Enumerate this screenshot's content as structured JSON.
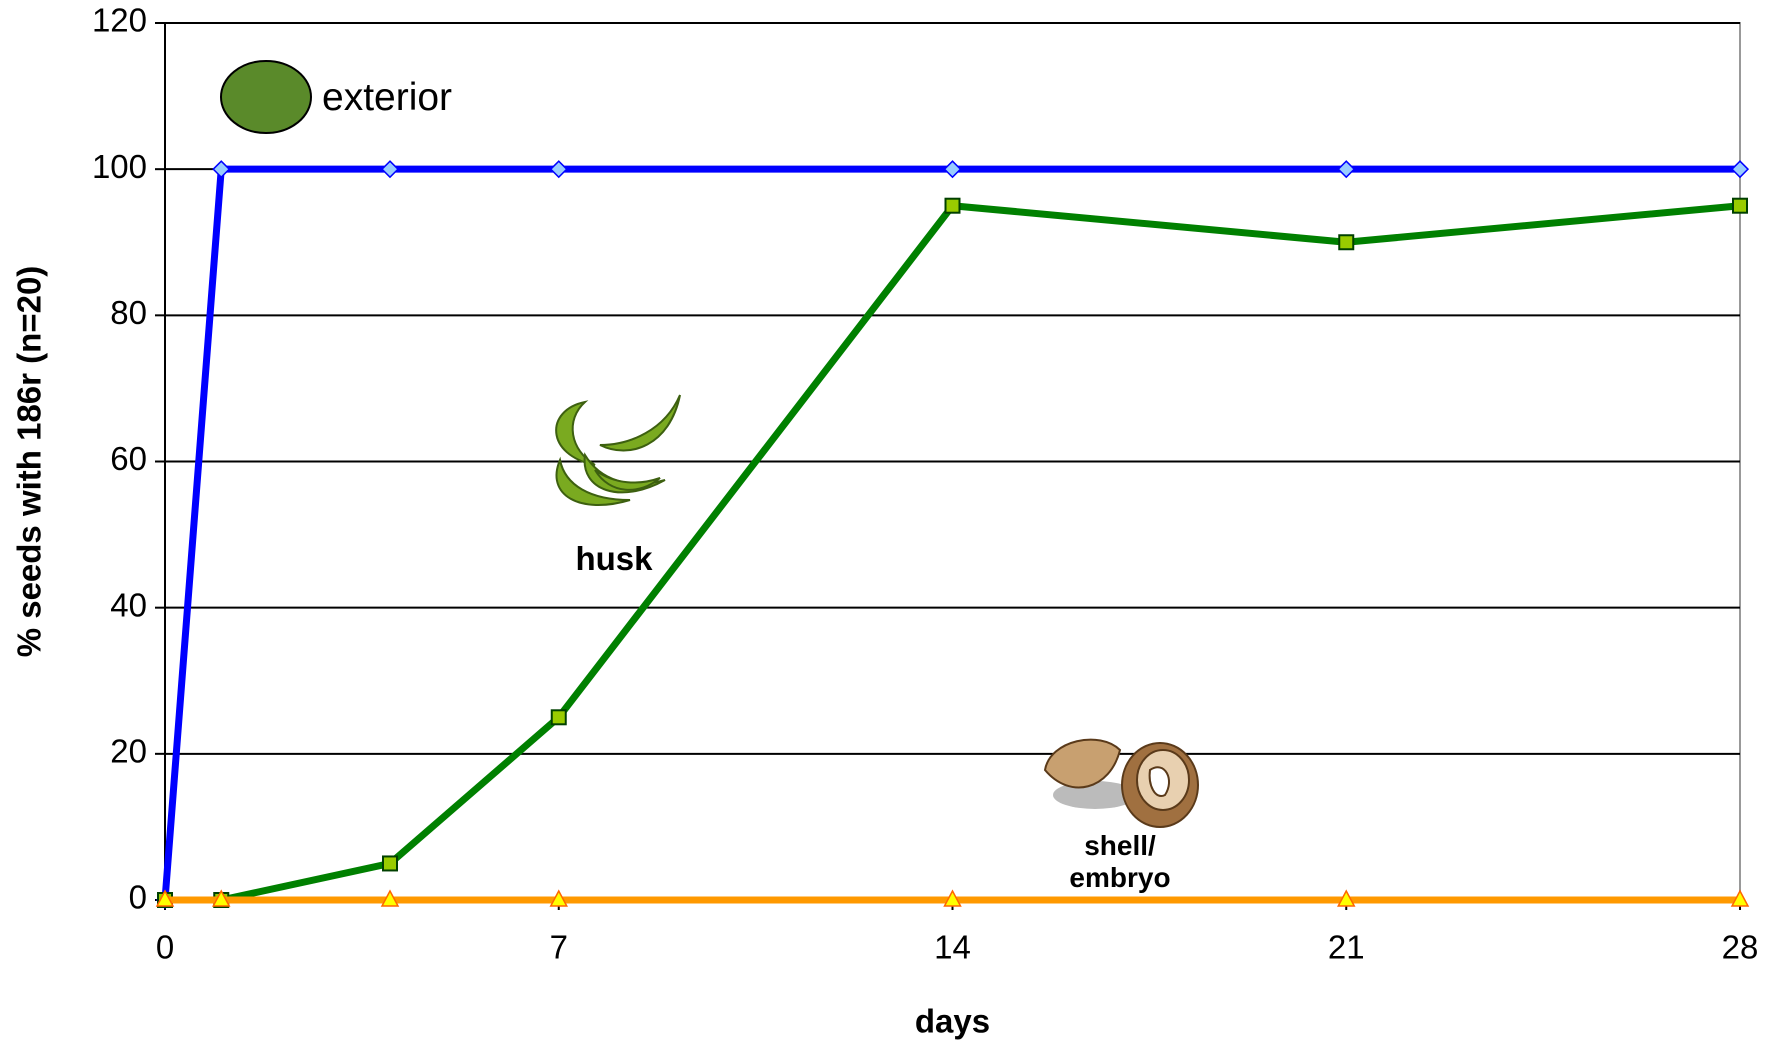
{
  "chart_data": {
    "type": "line",
    "x_label": "days",
    "y_label": "% seeds with 186r (n=20)",
    "x": [
      0,
      1,
      4,
      7,
      14,
      21,
      28
    ],
    "series": [
      {
        "name": "exterior",
        "color": "#0000ff",
        "marker": "diamond",
        "marker_color": "#99ccff",
        "values": [
          0,
          100,
          100,
          100,
          100,
          100,
          100
        ]
      },
      {
        "name": "husk",
        "color": "#008000",
        "marker": "square",
        "marker_color": "#99cc00",
        "values": [
          0,
          0,
          5,
          25,
          95,
          90,
          95
        ]
      },
      {
        "name": "shell/ embryo",
        "color": "#ff9900",
        "marker": "triangle",
        "marker_color": "#ffff00",
        "values": [
          0,
          0,
          0,
          0,
          0,
          0,
          0
        ]
      }
    ],
    "xlim": [
      0,
      28
    ],
    "xticks": [
      0,
      7,
      14,
      21,
      28
    ],
    "ylim": [
      0,
      120
    ],
    "yticks": [
      0,
      20,
      40,
      60,
      80,
      100,
      120
    ],
    "grid": true
  }
}
